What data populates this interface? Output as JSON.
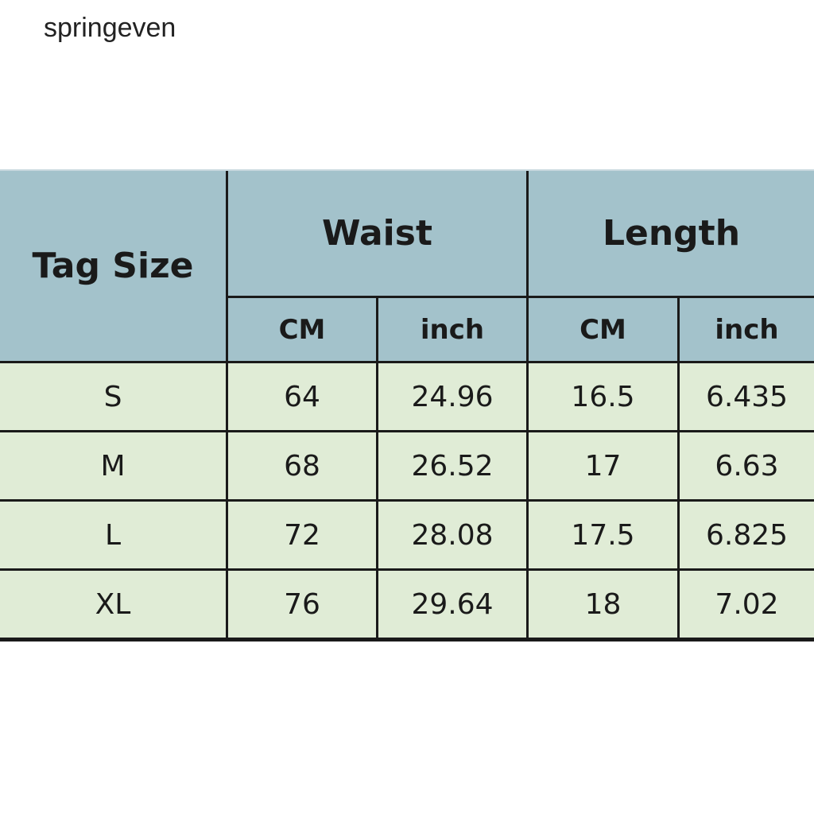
{
  "watermark": "springeven",
  "table": {
    "header": {
      "tag_size": "Tag Size",
      "groups": [
        "Waist",
        "Length"
      ],
      "units": [
        "CM",
        "inch",
        "CM",
        "inch"
      ]
    },
    "rows": [
      [
        "S",
        "64",
        "24.96",
        "16.5",
        "6.435"
      ],
      [
        "M",
        "68",
        "26.52",
        "17",
        "6.63"
      ],
      [
        "L",
        "72",
        "28.08",
        "17.5",
        "6.825"
      ],
      [
        "XL",
        "76",
        "29.64",
        "18",
        "7.02"
      ]
    ]
  }
}
